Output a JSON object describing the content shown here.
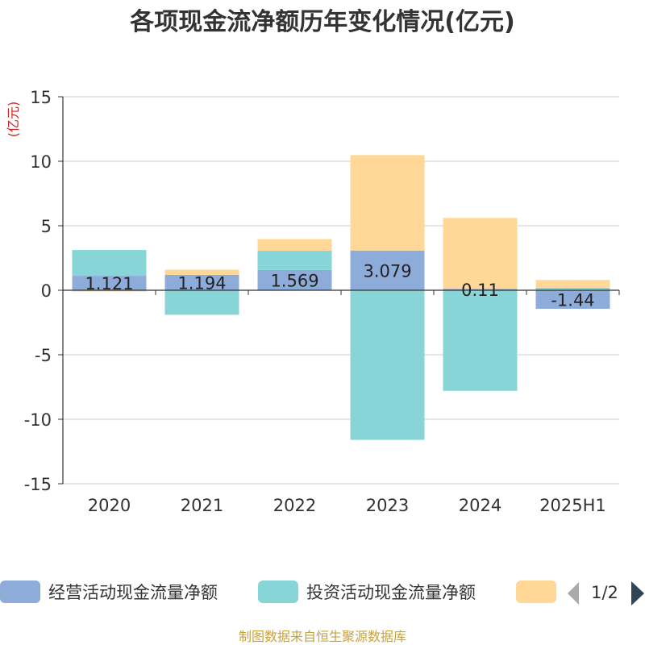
{
  "chart_data": {
    "type": "bar",
    "stacked": true,
    "title": "各项现金流净额历年变化情况(亿元)",
    "ylabel": "(亿元)",
    "categories": [
      "2020",
      "2021",
      "2022",
      "2023",
      "2024",
      "2025H1"
    ],
    "ylim": [
      -15,
      15
    ],
    "yticks": [
      15,
      10,
      5,
      0,
      -5,
      -10,
      -15
    ],
    "grid": true,
    "series": [
      {
        "name": "经营活动现金流量净额",
        "color": "#8eacda",
        "values": [
          1.121,
          1.194,
          1.569,
          3.079,
          0.11,
          -1.44
        ],
        "labels": [
          "1.121",
          "1.194",
          "1.569",
          "3.079",
          "0.11",
          "-1.44"
        ]
      },
      {
        "name": "投资活动现金流量净额",
        "color": "#88d5d8",
        "values": [
          2.0,
          -1.9,
          1.5,
          -11.6,
          -7.8,
          0.2
        ]
      },
      {
        "name": "",
        "color": "#ffd898",
        "values": [
          -0.1,
          0.4,
          0.9,
          7.4,
          5.5,
          0.6
        ]
      }
    ],
    "legend": {
      "position": "bottom",
      "page": "1/2"
    }
  },
  "footer": {
    "source": "制图数据来自恒生聚源数据库"
  }
}
